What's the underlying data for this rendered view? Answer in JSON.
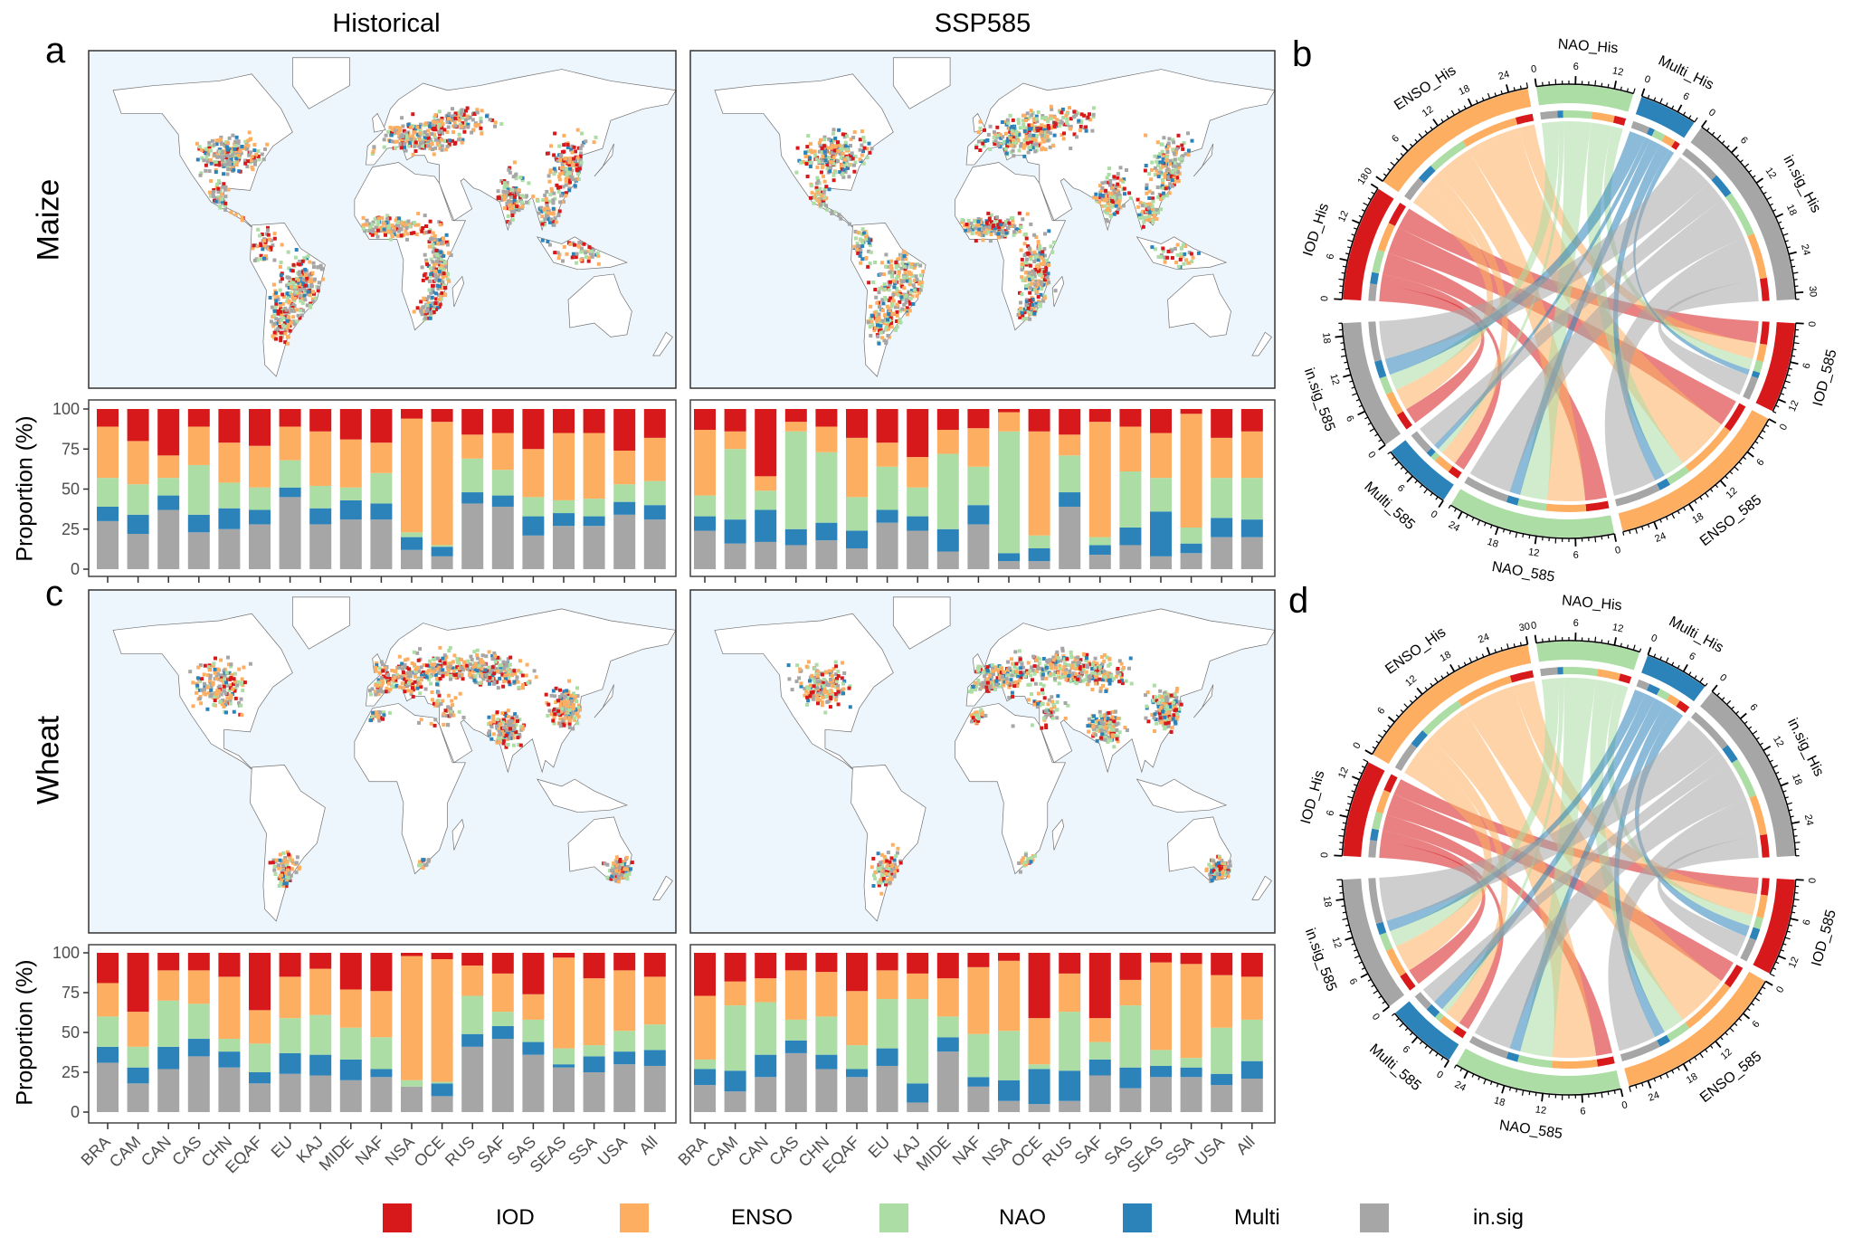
{
  "titles": {
    "historical": "Historical",
    "ssp": "SSP585"
  },
  "panel_letters": {
    "a": "a",
    "b": "b",
    "c": "c",
    "d": "d"
  },
  "rows": {
    "maize": "Maize",
    "wheat": "Wheat"
  },
  "ylabel": "Proportion (%)",
  "legend": [
    {
      "label": "IOD",
      "color": "#d7191c"
    },
    {
      "label": "ENSO",
      "color": "#fdae61"
    },
    {
      "label": "NAO",
      "color": "#abdda4"
    },
    {
      "label": "Multi",
      "color": "#2b83ba"
    },
    {
      "label": "in.sig",
      "color": "#a6a6a6"
    }
  ],
  "chart_data": [
    {
      "panel": "a",
      "crop": "Maize",
      "period": "Historical",
      "type": "bar",
      "stacked": true,
      "ylabel": "Proportion (%)",
      "ylim": [
        0,
        100
      ],
      "yticks": [
        0,
        25,
        50,
        75,
        100
      ],
      "categories": [
        "BRA",
        "CAM",
        "CAN",
        "CAS",
        "CHN",
        "EQAF",
        "EU",
        "KAJ",
        "MIDE",
        "NAF",
        "NSA",
        "OCE",
        "RUS",
        "SAF",
        "SAS",
        "SEAS",
        "SSA",
        "USA",
        "All"
      ],
      "series": [
        {
          "name": "IOD",
          "color": "#d7191c",
          "values": [
            11,
            20,
            29,
            11,
            21,
            23,
            11,
            14,
            19,
            21,
            6,
            8,
            16,
            15,
            25,
            15,
            15,
            26,
            18
          ]
        },
        {
          "name": "ENSO",
          "color": "#fdae61",
          "values": [
            32,
            27,
            14,
            24,
            25,
            26,
            21,
            34,
            30,
            19,
            71,
            77,
            15,
            23,
            30,
            42,
            41,
            21,
            27
          ]
        },
        {
          "name": "NAO",
          "color": "#abdda4",
          "values": [
            18,
            19,
            11,
            31,
            16,
            14,
            17,
            14,
            8,
            19,
            3,
            1,
            21,
            16,
            12,
            8,
            11,
            11,
            15
          ]
        },
        {
          "name": "Multi",
          "color": "#2b83ba",
          "values": [
            9,
            12,
            9,
            11,
            13,
            9,
            6,
            10,
            12,
            10,
            8,
            6,
            7,
            7,
            12,
            8,
            6,
            8,
            9
          ]
        },
        {
          "name": "in.sig",
          "color": "#a6a6a6",
          "values": [
            30,
            22,
            37,
            23,
            25,
            28,
            45,
            28,
            31,
            31,
            12,
            8,
            41,
            39,
            21,
            27,
            27,
            34,
            31
          ]
        }
      ]
    },
    {
      "panel": "a",
      "crop": "Maize",
      "period": "SSP585",
      "type": "bar",
      "stacked": true,
      "ylim": [
        0,
        100
      ],
      "categories": [
        "BRA",
        "CAM",
        "CAN",
        "CAS",
        "CHN",
        "EQAF",
        "EU",
        "KAJ",
        "MIDE",
        "NAF",
        "NSA",
        "OCE",
        "RUS",
        "SAF",
        "SAS",
        "SEAS",
        "SSA",
        "USA",
        "All"
      ],
      "series": [
        {
          "name": "IOD",
          "color": "#d7191c",
          "values": [
            13,
            14,
            42,
            8,
            11,
            18,
            21,
            30,
            13,
            12,
            2,
            14,
            16,
            8,
            11,
            15,
            3,
            18,
            14
          ]
        },
        {
          "name": "ENSO",
          "color": "#fdae61",
          "values": [
            41,
            11,
            9,
            6,
            16,
            37,
            15,
            19,
            15,
            24,
            12,
            65,
            13,
            72,
            28,
            28,
            71,
            25,
            29
          ]
        },
        {
          "name": "NAO",
          "color": "#abdda4",
          "values": [
            13,
            44,
            12,
            61,
            44,
            21,
            27,
            18,
            47,
            24,
            76,
            8,
            23,
            5,
            35,
            21,
            10,
            25,
            26
          ]
        },
        {
          "name": "Multi",
          "color": "#2b83ba",
          "values": [
            9,
            15,
            20,
            10,
            11,
            11,
            8,
            9,
            14,
            12,
            5,
            8,
            9,
            6,
            11,
            28,
            6,
            12,
            11
          ]
        },
        {
          "name": "in.sig",
          "color": "#a6a6a6",
          "values": [
            24,
            16,
            17,
            15,
            18,
            13,
            29,
            24,
            11,
            28,
            5,
            5,
            39,
            9,
            15,
            8,
            10,
            20,
            20
          ]
        }
      ]
    },
    {
      "panel": "c",
      "crop": "Wheat",
      "period": "Historical",
      "type": "bar",
      "stacked": true,
      "ylabel": "Proportion (%)",
      "ylim": [
        0,
        100
      ],
      "yticks": [
        0,
        25,
        50,
        75,
        100
      ],
      "categories": [
        "BRA",
        "CAM",
        "CAN",
        "CAS",
        "CHN",
        "EQAF",
        "EU",
        "KAJ",
        "MIDE",
        "NAF",
        "NSA",
        "OCE",
        "RUS",
        "SAF",
        "SAS",
        "SEAS",
        "SSA",
        "USA",
        "All"
      ],
      "series": [
        {
          "name": "IOD",
          "color": "#d7191c",
          "values": [
            19,
            37,
            11,
            11,
            15,
            36,
            15,
            10,
            23,
            24,
            2,
            4,
            8,
            13,
            26,
            3,
            16,
            11,
            15
          ]
        },
        {
          "name": "ENSO",
          "color": "#fdae61",
          "values": [
            21,
            22,
            19,
            21,
            39,
            21,
            26,
            29,
            24,
            29,
            78,
            77,
            19,
            24,
            16,
            57,
            42,
            38,
            30
          ]
        },
        {
          "name": "NAO",
          "color": "#abdda4",
          "values": [
            19,
            13,
            29,
            22,
            8,
            18,
            22,
            25,
            20,
            20,
            4,
            1,
            24,
            9,
            14,
            10,
            7,
            13,
            16
          ]
        },
        {
          "name": "Multi",
          "color": "#2b83ba",
          "values": [
            10,
            10,
            14,
            11,
            10,
            7,
            13,
            13,
            13,
            5,
            0,
            8,
            8,
            8,
            8,
            2,
            10,
            8,
            10
          ]
        },
        {
          "name": "in.sig",
          "color": "#a6a6a6",
          "values": [
            31,
            18,
            27,
            35,
            28,
            18,
            24,
            23,
            20,
            22,
            16,
            10,
            41,
            46,
            36,
            28,
            25,
            30,
            29
          ]
        }
      ]
    },
    {
      "panel": "c",
      "crop": "Wheat",
      "period": "SSP585",
      "type": "bar",
      "stacked": true,
      "ylim": [
        0,
        100
      ],
      "categories": [
        "BRA",
        "CAM",
        "CAN",
        "CAS",
        "CHN",
        "EQAF",
        "EU",
        "KAJ",
        "MIDE",
        "NAF",
        "NSA",
        "OCE",
        "RUS",
        "SAF",
        "SAS",
        "SEAS",
        "SSA",
        "USA",
        "All"
      ],
      "series": [
        {
          "name": "IOD",
          "color": "#d7191c",
          "values": [
            27,
            18,
            16,
            11,
            12,
            24,
            11,
            13,
            16,
            9,
            5,
            41,
            13,
            41,
            17,
            6,
            7,
            14,
            15
          ]
        },
        {
          "name": "ENSO",
          "color": "#fdae61",
          "values": [
            40,
            15,
            15,
            31,
            28,
            34,
            18,
            16,
            24,
            42,
            44,
            29,
            24,
            15,
            16,
            55,
            59,
            33,
            27
          ]
        },
        {
          "name": "NAO",
          "color": "#abdda4",
          "values": [
            6,
            41,
            33,
            13,
            24,
            15,
            31,
            53,
            13,
            27,
            31,
            3,
            37,
            11,
            39,
            10,
            6,
            29,
            26
          ]
        },
        {
          "name": "Multi",
          "color": "#2b83ba",
          "values": [
            10,
            13,
            14,
            8,
            9,
            5,
            11,
            12,
            9,
            6,
            13,
            22,
            19,
            10,
            13,
            7,
            6,
            7,
            11
          ]
        },
        {
          "name": "in.sig",
          "color": "#a6a6a6",
          "values": [
            17,
            13,
            22,
            37,
            27,
            22,
            29,
            6,
            38,
            16,
            7,
            5,
            7,
            23,
            15,
            22,
            22,
            17,
            21
          ]
        }
      ]
    },
    {
      "panel": "b",
      "crop": "Maize",
      "type": "chord",
      "from": [
        "IOD_His",
        "ENSO_His",
        "NAO_His",
        "Multi_His",
        "in.sig_His"
      ],
      "to": [
        "IOD_585",
        "ENSO_585",
        "NAO_585",
        "Multi_585",
        "in.sig_585"
      ],
      "colors": [
        "#d7191c",
        "#fdae61",
        "#abdda4",
        "#2b83ba",
        "#a6a6a6"
      ],
      "matrix": [
        [
          4,
          5,
          4,
          2,
          3
        ],
        [
          3,
          10,
          7,
          3,
          4
        ],
        [
          2,
          4,
          5,
          1,
          3
        ],
        [
          1,
          2,
          2,
          1,
          3
        ],
        [
          4,
          8,
          8,
          4,
          7
        ]
      ]
    },
    {
      "panel": "d",
      "crop": "Wheat",
      "type": "chord",
      "from": [
        "IOD_His",
        "ENSO_His",
        "NAO_His",
        "Multi_His",
        "in.sig_His"
      ],
      "to": [
        "IOD_585",
        "ENSO_585",
        "NAO_585",
        "Multi_585",
        "in.sig_585"
      ],
      "colors": [
        "#d7191c",
        "#fdae61",
        "#abdda4",
        "#2b83ba",
        "#a6a6a6"
      ],
      "matrix": [
        [
          3,
          4,
          3,
          2,
          3
        ],
        [
          4,
          10,
          8,
          3,
          5
        ],
        [
          2,
          4,
          6,
          1,
          3
        ],
        [
          2,
          2,
          2,
          2,
          2
        ],
        [
          4,
          7,
          7,
          3,
          8
        ]
      ]
    }
  ]
}
